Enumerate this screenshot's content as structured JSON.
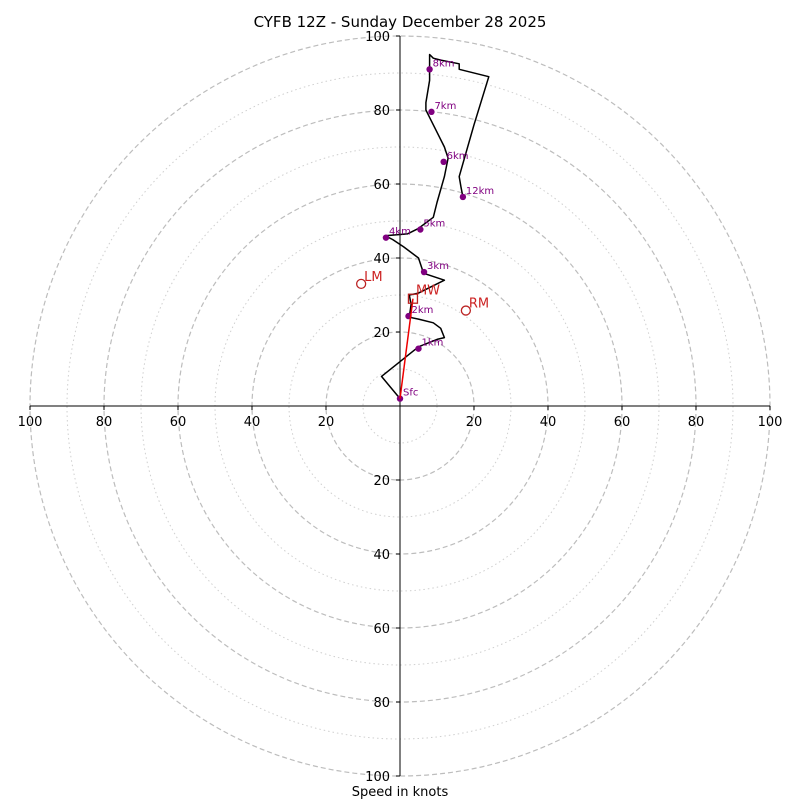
{
  "chart_data": {
    "type": "hodograph",
    "title": "CYFB 12Z - Sunday December 28 2025",
    "xlabel": "Speed in knots",
    "units": "knots",
    "max_speed": 100,
    "major_rings": [
      20,
      40,
      60,
      80,
      100
    ],
    "minor_rings": [
      10,
      30,
      50,
      70,
      90
    ],
    "x_ticks": [
      {
        "value": -100,
        "label": "100"
      },
      {
        "value": -80,
        "label": "80"
      },
      {
        "value": -60,
        "label": "60"
      },
      {
        "value": -40,
        "label": "40"
      },
      {
        "value": -20,
        "label": "20"
      },
      {
        "value": 20,
        "label": "20"
      },
      {
        "value": 40,
        "label": "40"
      },
      {
        "value": 60,
        "label": "60"
      },
      {
        "value": 80,
        "label": "80"
      },
      {
        "value": 100,
        "label": "100"
      }
    ],
    "y_ticks": [
      {
        "value": 100,
        "label": "100"
      },
      {
        "value": 80,
        "label": "80"
      },
      {
        "value": 60,
        "label": "60"
      },
      {
        "value": 40,
        "label": "40"
      },
      {
        "value": 20,
        "label": "20"
      },
      {
        "value": -20,
        "label": "20"
      },
      {
        "value": -40,
        "label": "40"
      },
      {
        "value": -60,
        "label": "60"
      },
      {
        "value": -80,
        "label": "80"
      },
      {
        "value": -100,
        "label": "100"
      }
    ],
    "trace_color": "#000000",
    "trace": [
      [
        0,
        2
      ],
      [
        -5,
        8
      ],
      [
        5,
        16
      ],
      [
        10,
        18
      ],
      [
        12,
        18.5
      ],
      [
        11,
        21
      ],
      [
        9,
        22.5
      ],
      [
        5,
        23.5
      ],
      [
        2.5,
        24
      ],
      [
        3,
        27.5
      ],
      [
        2.5,
        30
      ],
      [
        5,
        30.5
      ],
      [
        12,
        34
      ],
      [
        6,
        36
      ],
      [
        6,
        37
      ],
      [
        5,
        40
      ],
      [
        1,
        43
      ],
      [
        -2,
        45
      ],
      [
        -4,
        46
      ],
      [
        2,
        46.5
      ],
      [
        5,
        48
      ],
      [
        9,
        51
      ],
      [
        10,
        55
      ],
      [
        12,
        62
      ],
      [
        13,
        67
      ],
      [
        12,
        70
      ],
      [
        10,
        74
      ],
      [
        8,
        78
      ],
      [
        7,
        80
      ],
      [
        7,
        82
      ],
      [
        8,
        88
      ],
      [
        8,
        92
      ],
      [
        8,
        95
      ],
      [
        9,
        94
      ],
      [
        11,
        93.5
      ],
      [
        16,
        92.5
      ],
      [
        16,
        91
      ],
      [
        24,
        89
      ],
      [
        20,
        76
      ],
      [
        16,
        62
      ],
      [
        16.5,
        59
      ],
      [
        17,
        56.5
      ]
    ],
    "height_markers": [
      {
        "label": "Sfc",
        "x": 0,
        "y": 2
      },
      {
        "label": "1km",
        "x": 5,
        "y": 15.5
      },
      {
        "label": "2km",
        "x": 2.3,
        "y": 24.3
      },
      {
        "label": "3km",
        "x": 6.5,
        "y": 36.2
      },
      {
        "label": "4km",
        "x": -3.8,
        "y": 45.5
      },
      {
        "label": "5km",
        "x": 5.5,
        "y": 47.7
      },
      {
        "label": "6km",
        "x": 11.8,
        "y": 66
      },
      {
        "label": "7km",
        "x": 8.5,
        "y": 79.5
      },
      {
        "label": "8km",
        "x": 8,
        "y": 91
      },
      {
        "label": "12km",
        "x": 17,
        "y": 56.5
      }
    ],
    "marker_color": "#800080",
    "mean_wind": {
      "label": "MW",
      "x": 3.5,
      "y": 29
    },
    "right_mover": {
      "label": "RM",
      "x": 17.8,
      "y": 25.8
    },
    "left_mover": {
      "label": "LM",
      "x": -10.5,
      "y": 33
    },
    "storm_vector_color": "#ee0000",
    "motion_color": "#bb2222"
  }
}
